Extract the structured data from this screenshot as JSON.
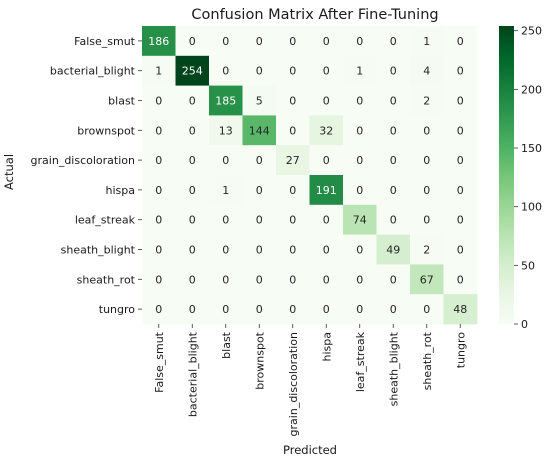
{
  "chart_data": {
    "type": "heatmap",
    "title": "Confusion Matrix After Fine-Tuning",
    "xlabel": "Predicted",
    "ylabel": "Actual",
    "x_labels": [
      "False_smut",
      "bacterial_blight",
      "blast",
      "brownspot",
      "grain_discoloration",
      "hispa",
      "leaf_streak",
      "sheath_blight",
      "sheath_rot",
      "tungro"
    ],
    "y_labels": [
      "False_smut",
      "bacterial_blight",
      "blast",
      "brownspot",
      "grain_discoloration",
      "hispa",
      "leaf_streak",
      "sheath_blight",
      "sheath_rot",
      "tungro"
    ],
    "matrix": [
      [
        186,
        0,
        0,
        0,
        0,
        0,
        0,
        0,
        1,
        0
      ],
      [
        1,
        254,
        0,
        0,
        0,
        0,
        1,
        0,
        4,
        0
      ],
      [
        0,
        0,
        185,
        5,
        0,
        0,
        0,
        0,
        2,
        0
      ],
      [
        0,
        0,
        13,
        144,
        0,
        32,
        0,
        0,
        0,
        0
      ],
      [
        0,
        0,
        0,
        0,
        27,
        0,
        0,
        0,
        0,
        0
      ],
      [
        0,
        0,
        1,
        0,
        0,
        191,
        0,
        0,
        0,
        0
      ],
      [
        0,
        0,
        0,
        0,
        0,
        0,
        74,
        0,
        0,
        0
      ],
      [
        0,
        0,
        0,
        0,
        0,
        0,
        0,
        49,
        2,
        0
      ],
      [
        0,
        0,
        0,
        0,
        0,
        0,
        0,
        0,
        67,
        0
      ],
      [
        0,
        0,
        0,
        0,
        0,
        0,
        0,
        0,
        0,
        48
      ]
    ],
    "colorbar": {
      "vmin": 0,
      "vmax": 254,
      "ticks": [
        0,
        50,
        100,
        150,
        200,
        250
      ]
    },
    "colormap": "Greens",
    "annotations": true
  }
}
